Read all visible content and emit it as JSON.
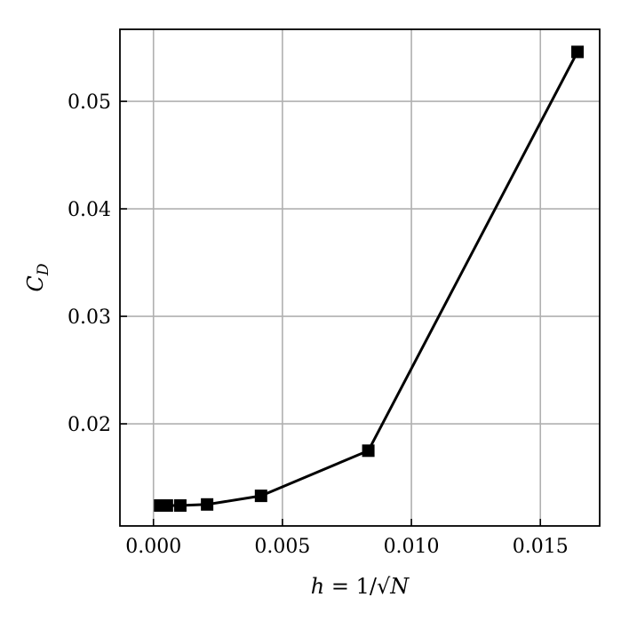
{
  "chart_data": {
    "type": "line",
    "xlabel": "h = 1/√N",
    "ylabel": "C_D",
    "xlim": [
      -0.0013,
      0.0173
    ],
    "ylim": [
      0.0105,
      0.0567
    ],
    "x_ticks": [
      0.0,
      0.005,
      0.01,
      0.015
    ],
    "x_tick_labels": [
      "0.000",
      "0.005",
      "0.010",
      "0.015"
    ],
    "y_ticks": [
      0.02,
      0.03,
      0.04,
      0.05
    ],
    "y_tick_labels": [
      "0.02",
      "0.03",
      "0.04",
      "0.05"
    ],
    "grid": true,
    "series": [
      {
        "marker": "square",
        "color": "#000000",
        "x": [
          0.00026,
          0.00052,
          0.00104,
          0.00208,
          0.00417,
          0.00833,
          0.01644
        ],
        "y": [
          0.0124,
          0.0124,
          0.0124,
          0.0125,
          0.0133,
          0.0175,
          0.0546
        ]
      }
    ]
  }
}
